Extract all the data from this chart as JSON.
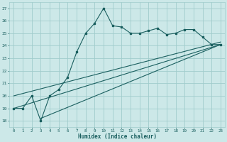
{
  "xlabel": "Humidex (Indice chaleur)",
  "ylabel": "",
  "bg_color": "#cce8e8",
  "grid_color": "#a0cccc",
  "line_color": "#1a5f5f",
  "xlim": [
    -0.5,
    23.5
  ],
  "ylim": [
    17.5,
    27.5
  ],
  "yticks": [
    18,
    19,
    20,
    21,
    22,
    23,
    24,
    25,
    26,
    27
  ],
  "xticks": [
    0,
    1,
    2,
    3,
    4,
    5,
    6,
    7,
    8,
    9,
    10,
    11,
    12,
    13,
    14,
    15,
    16,
    17,
    18,
    19,
    20,
    21,
    22,
    23
  ],
  "line1_x": [
    0,
    1,
    2,
    3,
    4,
    5,
    6,
    7,
    8,
    9,
    10,
    11,
    12,
    13,
    14,
    15,
    16,
    17,
    18,
    19,
    20,
    21,
    22,
    23
  ],
  "line1_y": [
    19,
    19,
    20,
    18,
    20,
    20.5,
    21.5,
    23.5,
    25,
    25.8,
    27,
    25.6,
    25.5,
    25,
    25,
    25.2,
    25.4,
    24.9,
    25,
    25.3,
    25.3,
    24.7,
    24.1,
    24.1
  ],
  "line2_x": [
    0,
    23
  ],
  "line2_y": [
    19.0,
    24.1
  ],
  "line3_x": [
    3,
    23
  ],
  "line3_y": [
    18.2,
    24.1
  ],
  "line4_x": [
    0,
    23
  ],
  "line4_y": [
    20.0,
    24.3
  ]
}
